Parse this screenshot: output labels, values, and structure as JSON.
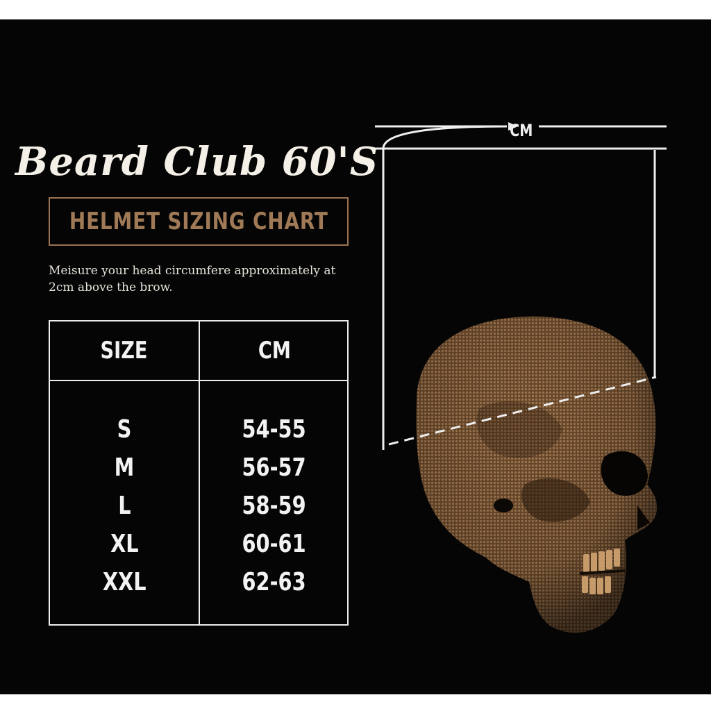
{
  "brand": "Beard Club 60'S",
  "chart_title": "HELMET SIZING CHART",
  "instruction": "Meisure your head circumfere approximately at 2cm above the brow.",
  "table": {
    "headers": [
      "SIZE",
      "CM"
    ],
    "rows": [
      {
        "size": "S",
        "cm": "54-55"
      },
      {
        "size": "M",
        "cm": "56-57"
      },
      {
        "size": "L",
        "cm": "58-59"
      },
      {
        "size": "XL",
        "cm": "60-61"
      },
      {
        "size": "XXL",
        "cm": "62-63"
      }
    ]
  },
  "diagram": {
    "unit_label": "CM",
    "illustration": "skull-illustration"
  },
  "colors": {
    "background": "#050505",
    "accent": "#a07a57",
    "text": "#f2f2f2"
  }
}
